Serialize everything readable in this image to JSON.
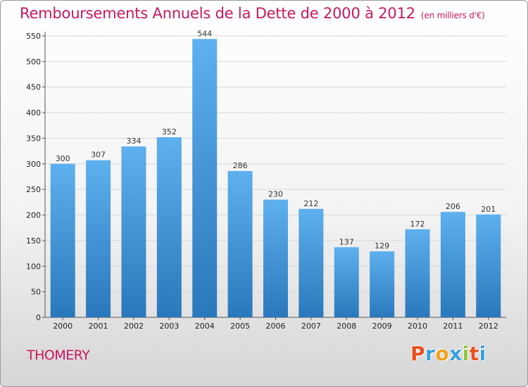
{
  "chart_data": {
    "type": "bar",
    "title": "Remboursements Annuels de la Dette de 2000 à 2012",
    "unit_note": "(en milliers d'€)",
    "categories": [
      "2000",
      "2001",
      "2002",
      "2003",
      "2004",
      "2005",
      "2006",
      "2007",
      "2008",
      "2009",
      "2010",
      "2011",
      "2012"
    ],
    "values": [
      300,
      307,
      334,
      352,
      544,
      286,
      230,
      212,
      137,
      129,
      172,
      206,
      201
    ],
    "yticks": [
      0,
      50,
      100,
      150,
      200,
      250,
      300,
      350,
      400,
      450,
      500,
      550
    ],
    "ylim": [
      0,
      550
    ],
    "grid": true,
    "bar_color": "#3a8fd6"
  },
  "commune": "THOMERY",
  "logo": {
    "text": "Proxiti",
    "colors": [
      "#e8501e",
      "#3aa0dc",
      "#f0a01e",
      "#3aa0dc",
      "#8cc63f",
      "#e8501e",
      "#3aa0dc"
    ]
  }
}
